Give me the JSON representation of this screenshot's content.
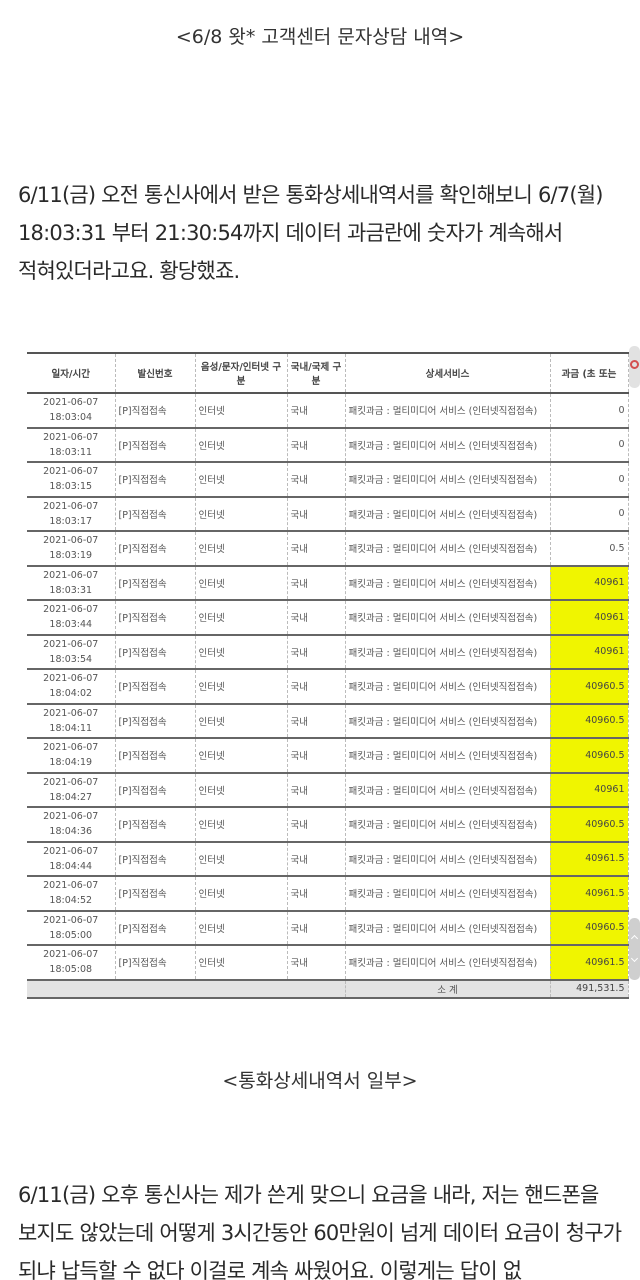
{
  "caption1": "<6/8 왓* 고객센터 문자상담 내역>",
  "paragraph1": "6/11(금) 오전 통신사에서 받은 통화상세내역서를 확인해보니 6/7(월) 18:03:31 부터 21:30:54까지 데이터 과금란에 숫자가 계속해서 적혀있더라고요. 황당했죠.",
  "table": {
    "headers": [
      "일자/시간",
      "발신번호",
      "음성/문자/인터넷 구분",
      "국내/국제 구분",
      "상세서비스",
      "과금 (초 또는"
    ],
    "rows": [
      {
        "date": "2021-06-07",
        "time": "18:03:04",
        "from": "[P]직접접속",
        "type": "인터넷",
        "region": "국내",
        "service": "패킷과금 : 멀티미디어 서비스 (인터넷직접접속)",
        "amount": "0",
        "highlight": false
      },
      {
        "date": "2021-06-07",
        "time": "18:03:11",
        "from": "[P]직접접속",
        "type": "인터넷",
        "region": "국내",
        "service": "패킷과금 : 멀티미디어 서비스 (인터넷직접접속)",
        "amount": "0",
        "highlight": false
      },
      {
        "date": "2021-06-07",
        "time": "18:03:15",
        "from": "[P]직접접속",
        "type": "인터넷",
        "region": "국내",
        "service": "패킷과금 : 멀티미디어 서비스 (인터넷직접접속)",
        "amount": "0",
        "highlight": false
      },
      {
        "date": "2021-06-07",
        "time": "18:03:17",
        "from": "[P]직접접속",
        "type": "인터넷",
        "region": "국내",
        "service": "패킷과금 : 멀티미디어 서비스 (인터넷직접접속)",
        "amount": "0",
        "highlight": false
      },
      {
        "date": "2021-06-07",
        "time": "18:03:19",
        "from": "[P]직접접속",
        "type": "인터넷",
        "region": "국내",
        "service": "패킷과금 : 멀티미디어 서비스 (인터넷직접접속)",
        "amount": "0.5",
        "highlight": false
      },
      {
        "date": "2021-06-07",
        "time": "18:03:31",
        "from": "[P]직접접속",
        "type": "인터넷",
        "region": "국내",
        "service": "패킷과금 : 멀티미디어 서비스 (인터넷직접접속)",
        "amount": "40961",
        "highlight": true
      },
      {
        "date": "2021-06-07",
        "time": "18:03:44",
        "from": "[P]직접접속",
        "type": "인터넷",
        "region": "국내",
        "service": "패킷과금 : 멀티미디어 서비스 (인터넷직접접속)",
        "amount": "40961",
        "highlight": true
      },
      {
        "date": "2021-06-07",
        "time": "18:03:54",
        "from": "[P]직접접속",
        "type": "인터넷",
        "region": "국내",
        "service": "패킷과금 : 멀티미디어 서비스 (인터넷직접접속)",
        "amount": "40961",
        "highlight": true
      },
      {
        "date": "2021-06-07",
        "time": "18:04:02",
        "from": "[P]직접접속",
        "type": "인터넷",
        "region": "국내",
        "service": "패킷과금 : 멀티미디어 서비스 (인터넷직접접속)",
        "amount": "40960.5",
        "highlight": true
      },
      {
        "date": "2021-06-07",
        "time": "18:04:11",
        "from": "[P]직접접속",
        "type": "인터넷",
        "region": "국내",
        "service": "패킷과금 : 멀티미디어 서비스 (인터넷직접접속)",
        "amount": "40960.5",
        "highlight": true
      },
      {
        "date": "2021-06-07",
        "time": "18:04:19",
        "from": "[P]직접접속",
        "type": "인터넷",
        "region": "국내",
        "service": "패킷과금 : 멀티미디어 서비스 (인터넷직접접속)",
        "amount": "40960.5",
        "highlight": true
      },
      {
        "date": "2021-06-07",
        "time": "18:04:27",
        "from": "[P]직접접속",
        "type": "인터넷",
        "region": "국내",
        "service": "패킷과금 : 멀티미디어 서비스 (인터넷직접접속)",
        "amount": "40961",
        "highlight": true
      },
      {
        "date": "2021-06-07",
        "time": "18:04:36",
        "from": "[P]직접접속",
        "type": "인터넷",
        "region": "국내",
        "service": "패킷과금 : 멀티미디어 서비스 (인터넷직접접속)",
        "amount": "40960.5",
        "highlight": true
      },
      {
        "date": "2021-06-07",
        "time": "18:04:44",
        "from": "[P]직접접속",
        "type": "인터넷",
        "region": "국내",
        "service": "패킷과금 : 멀티미디어 서비스 (인터넷직접접속)",
        "amount": "40961.5",
        "highlight": true
      },
      {
        "date": "2021-06-07",
        "time": "18:04:52",
        "from": "[P]직접접속",
        "type": "인터넷",
        "region": "국내",
        "service": "패킷과금 : 멀티미디어 서비스 (인터넷직접접속)",
        "amount": "40961.5",
        "highlight": true
      },
      {
        "date": "2021-06-07",
        "time": "18:05:00",
        "from": "[P]직접접속",
        "type": "인터넷",
        "region": "국내",
        "service": "패킷과금 : 멀티미디어 서비스 (인터넷직접접속)",
        "amount": "40960.5",
        "highlight": true
      },
      {
        "date": "2021-06-07",
        "time": "18:05:08",
        "from": "[P]직접접속",
        "type": "인터넷",
        "region": "국내",
        "service": "패킷과금 : 멀티미디어 서비스 (인터넷직접접속)",
        "amount": "40961.5",
        "highlight": true
      }
    ],
    "total_label": "소 계",
    "total": "491,531.5",
    "highlight_color": "#f0f500"
  },
  "caption2": "<통화상세내역서 일부>",
  "paragraph2": "6/11(금) 오후 통신사는 제가 쓴게 맞으니 요금을 내라, 저는 핸드폰을 보지도 않았는데 어떻게 3시간동안 60만원이 넘게 데이터 요금이 청구가 되냐 납득할 수 없다 이걸로 계속 싸웠어요. 이렇게는 답이 없"
}
